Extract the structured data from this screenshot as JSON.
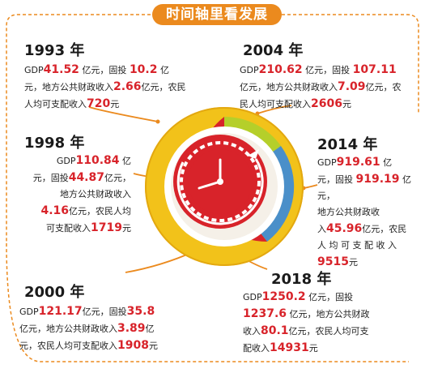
{
  "title": "时间轴里看发展",
  "colors": {
    "accent_orange": "#eb8a1e",
    "value_red": "#d8232a",
    "ring_green": "#b5cf2a",
    "ring_blue": "#4a8fc9",
    "ring_red": "#d8232a",
    "ring_yellow": "#f2c21a"
  },
  "icons": [
    "clock-icon",
    "timeline-ring"
  ],
  "entries": [
    {
      "year": "1993 年",
      "lines": [
        [
          {
            "t": "GDP"
          },
          {
            "v": "41.52"
          },
          {
            "t": " 亿元，固投 "
          },
          {
            "v": "10.2"
          },
          {
            "t": " 亿"
          }
        ],
        [
          {
            "t": "元，地方公共财政收入"
          },
          {
            "v": "2.66"
          },
          {
            "t": "亿元，农民"
          }
        ],
        [
          {
            "t": "人均可支配收入"
          },
          {
            "v": "720"
          },
          {
            "t": "元"
          }
        ]
      ]
    },
    {
      "year": "2004 年",
      "lines": [
        [
          {
            "t": "GDP"
          },
          {
            "v": "210.62"
          },
          {
            "t": " 亿元，固投 "
          },
          {
            "v": "107.11"
          }
        ],
        [
          {
            "t": "亿元，地方公共财政收入"
          },
          {
            "v": "7.09"
          },
          {
            "t": "亿元，农"
          }
        ],
        [
          {
            "t": "民人均可支配收入"
          },
          {
            "v": "2606"
          },
          {
            "t": "元"
          }
        ]
      ]
    },
    {
      "year": "1998 年",
      "lines": [
        [
          {
            "t": "GDP"
          },
          {
            "v": "110.84"
          },
          {
            "t": " 亿"
          }
        ],
        [
          {
            "t": "元，固投"
          },
          {
            "v": "44.87"
          },
          {
            "t": "亿元，"
          }
        ],
        [
          {
            "t": "地方公共财政收入"
          }
        ],
        [
          {
            "v": "4.16"
          },
          {
            "t": "亿元，农民人均"
          }
        ],
        [
          {
            "t": "可支配收入"
          },
          {
            "v": "1719"
          },
          {
            "t": "元"
          }
        ]
      ]
    },
    {
      "year": "2014 年",
      "lines": [
        [
          {
            "t": "GDP"
          },
          {
            "v": "919.61"
          },
          {
            "t": " 亿"
          }
        ],
        [
          {
            "t": "元，固投 "
          },
          {
            "v": "919.19"
          },
          {
            "t": " 亿元，"
          }
        ],
        [
          {
            "t": "地方公共财政收"
          }
        ],
        [
          {
            "t": "入"
          },
          {
            "v": "45.96"
          },
          {
            "t": "亿元，农民"
          }
        ],
        [
          {
            "t": "人 均 可 支 配 收 入"
          }
        ],
        [
          {
            "v": "9515"
          },
          {
            "t": "元"
          }
        ]
      ]
    },
    {
      "year": "2000 年",
      "lines": [
        [
          {
            "t": "GDP"
          },
          {
            "v": "121.17"
          },
          {
            "t": "亿元，固投"
          },
          {
            "v": "35.8"
          }
        ],
        [
          {
            "t": "亿元，地方公共财政收入"
          },
          {
            "v": "3.89"
          },
          {
            "t": "亿"
          }
        ],
        [
          {
            "t": "元，农民人均可支配收入"
          },
          {
            "v": "1908"
          },
          {
            "t": "元"
          }
        ]
      ]
    },
    {
      "year": "2018 年",
      "lines": [
        [
          {
            "t": "GDP"
          },
          {
            "v": "1250.2"
          },
          {
            "t": " 亿元，固投"
          }
        ],
        [
          {
            "v": "1237.6"
          },
          {
            "t": " 亿元，地方公共财政"
          }
        ],
        [
          {
            "t": "收入"
          },
          {
            "v": "80.1"
          },
          {
            "t": "亿元，农民人均可支"
          }
        ],
        [
          {
            "t": "配收入"
          },
          {
            "v": "14931"
          },
          {
            "t": "元"
          }
        ]
      ]
    }
  ]
}
